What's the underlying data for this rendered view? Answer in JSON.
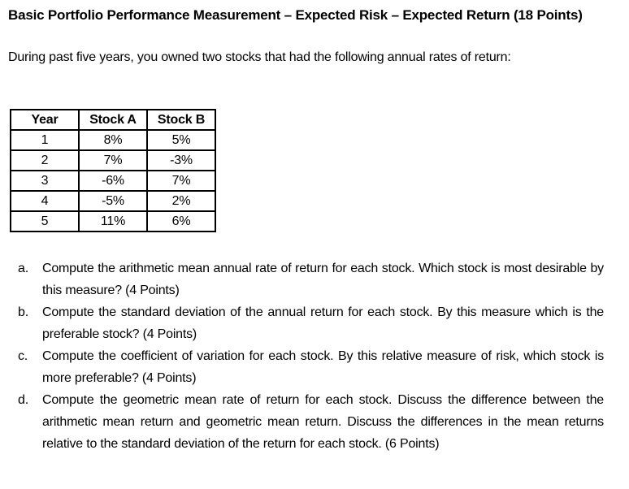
{
  "doc": {
    "title": "Basic Portfolio Performance Measurement – Expected Risk – Expected Return (18 Points)",
    "intro": "During past five years, you owned two stocks that had the following annual rates of return:",
    "table": {
      "headers": [
        "Year",
        "Stock A",
        "Stock B"
      ],
      "rows": [
        [
          "1",
          "8%",
          "5%"
        ],
        [
          "2",
          "7%",
          "-3%"
        ],
        [
          "3",
          "-6%",
          "7%"
        ],
        [
          "4",
          "-5%",
          "2%"
        ],
        [
          "5",
          "11%",
          "6%"
        ]
      ]
    },
    "questions": [
      {
        "marker": "a.",
        "text": "Compute the arithmetic mean annual rate of return for each stock. Which stock is most desirable by this measure? (4 Points)"
      },
      {
        "marker": "b.",
        "text": "Compute the standard deviation of the annual return for each stock. By this measure which is the preferable stock? (4 Points)"
      },
      {
        "marker": "c.",
        "text": "Compute the coefficient of variation for each stock. By this relative measure of risk, which stock is more preferable? (4 Points)"
      },
      {
        "marker": "d.",
        "text": "Compute the geometric mean rate of return for each stock. Discuss the difference between the arithmetic mean return and geometric mean return. Discuss the differences in the mean returns relative to the standard deviation of the return for each stock. (6 Points)"
      }
    ]
  }
}
